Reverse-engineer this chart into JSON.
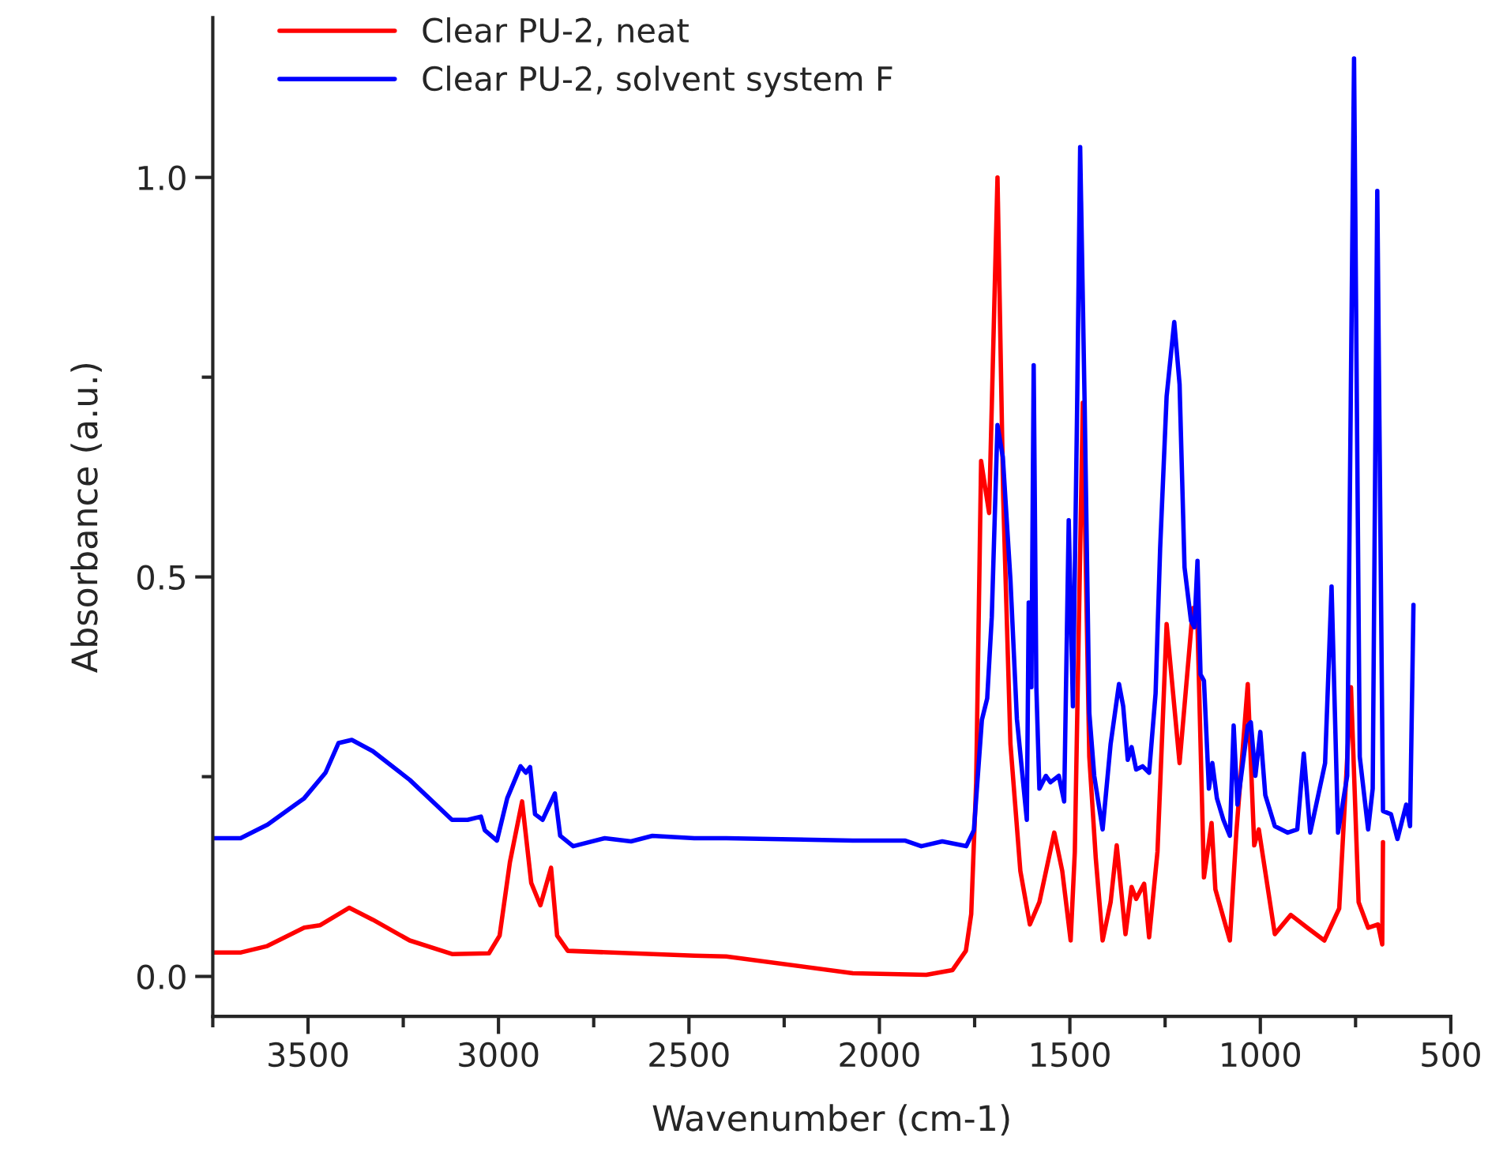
{
  "chart_data": {
    "type": "line",
    "xlabel": "Wavenumber (cm-1)",
    "ylabel": "Absorbance (a.u.)",
    "xlim": [
      3750,
      500
    ],
    "ylim": [
      -0.05,
      1.2
    ],
    "xticks": [
      {
        "value": 3750,
        "label": null
      },
      3500,
      {
        "value": 3250,
        "label": null
      },
      3000,
      {
        "value": 2750,
        "label": null
      },
      2500,
      {
        "value": 2250,
        "label": null
      },
      2000,
      {
        "value": 1750,
        "label": null
      },
      1500,
      {
        "value": 1250,
        "label": null
      },
      1000,
      {
        "value": 750,
        "label": null
      },
      500
    ],
    "yticks": [
      {
        "value": 0,
        "label": "0.0"
      },
      {
        "value": 0.25,
        "label": null
      },
      {
        "value": 0.5,
        "label": "0.5"
      },
      {
        "value": 0.75,
        "label": null
      },
      {
        "value": 1,
        "label": "1.0"
      }
    ],
    "legend": "top left",
    "series": [
      {
        "name": "Clear PU-2, neat",
        "color": "#ff0000",
        "x": [
          3750,
          3676,
          3607,
          3510,
          3469,
          3392,
          3330,
          3233,
          3122,
          3025,
          2997,
          2970,
          2938,
          2914,
          2890,
          2862,
          2846,
          2818,
          2486,
          2402,
          2070,
          1877,
          1808,
          1773,
          1759,
          1746,
          1733,
          1712,
          1690,
          1675,
          1656,
          1630,
          1605,
          1580,
          1541,
          1520,
          1498,
          1487,
          1466,
          1449,
          1432,
          1414,
          1393,
          1377,
          1354,
          1338,
          1326,
          1305,
          1292,
          1270,
          1246,
          1212,
          1177,
          1165,
          1148,
          1128,
          1118,
          1080,
          1063,
          1033,
          1016,
          1004,
          962,
          920,
          877,
          832,
          793,
          762,
          742,
          717,
          691,
          680,
          678
        ],
        "values": [
          0.03,
          0.03,
          0.038,
          0.061,
          0.064,
          0.086,
          0.071,
          0.045,
          0.028,
          0.029,
          0.051,
          0.143,
          0.219,
          0.117,
          0.089,
          0.136,
          0.051,
          0.032,
          0.026,
          0.025,
          0.004,
          0.002,
          0.008,
          0.032,
          0.078,
          0.242,
          0.645,
          0.58,
          1.0,
          0.6,
          0.291,
          0.132,
          0.065,
          0.093,
          0.18,
          0.132,
          0.045,
          0.156,
          0.718,
          0.275,
          0.148,
          0.045,
          0.093,
          0.164,
          0.053,
          0.112,
          0.097,
          0.116,
          0.049,
          0.156,
          0.441,
          0.267,
          0.461,
          0.441,
          0.124,
          0.192,
          0.109,
          0.045,
          0.18,
          0.366,
          0.164,
          0.184,
          0.053,
          0.077,
          0.061,
          0.045,
          0.085,
          0.362,
          0.093,
          0.061,
          0.065,
          0.04,
          0.168
        ]
      },
      {
        "name": "Clear PU-2, solvent system F",
        "color": "#0000ff",
        "x": [
          3750,
          3677,
          3606,
          3510,
          3454,
          3420,
          3385,
          3330,
          3233,
          3122,
          3081,
          3046,
          3036,
          3004,
          2977,
          2942,
          2928,
          2917,
          2904,
          2884,
          2852,
          2838,
          2804,
          2721,
          2652,
          2596,
          2486,
          2402,
          2070,
          1932,
          1890,
          1835,
          1772,
          1752,
          1731,
          1717,
          1705,
          1690,
          1676,
          1656,
          1639,
          1613,
          1608,
          1601,
          1595,
          1588,
          1580,
          1563,
          1551,
          1529,
          1515,
          1503,
          1492,
          1481,
          1473,
          1461,
          1449,
          1436,
          1414,
          1393,
          1371,
          1360,
          1348,
          1338,
          1326,
          1309,
          1292,
          1275,
          1263,
          1246,
          1226,
          1212,
          1199,
          1182,
          1173,
          1165,
          1157,
          1148,
          1135,
          1126,
          1114,
          1097,
          1080,
          1070,
          1060,
          1033,
          1025,
          1013,
          1000,
          987,
          962,
          928,
          903,
          886,
          869,
          830,
          813,
          796,
          772,
          754,
          739,
          717,
          705,
          693,
          678,
          657,
          640,
          617,
          607,
          598
        ],
        "values": [
          0.173,
          0.173,
          0.19,
          0.223,
          0.255,
          0.292,
          0.296,
          0.282,
          0.246,
          0.196,
          0.196,
          0.2,
          0.183,
          0.17,
          0.223,
          0.263,
          0.255,
          0.262,
          0.203,
          0.196,
          0.229,
          0.176,
          0.163,
          0.173,
          0.169,
          0.176,
          0.173,
          0.173,
          0.17,
          0.17,
          0.163,
          0.169,
          0.163,
          0.183,
          0.321,
          0.348,
          0.45,
          0.69,
          0.65,
          0.496,
          0.322,
          0.196,
          0.468,
          0.362,
          0.765,
          0.362,
          0.235,
          0.251,
          0.243,
          0.251,
          0.219,
          0.571,
          0.338,
          0.71,
          1.038,
          0.71,
          0.33,
          0.251,
          0.184,
          0.291,
          0.366,
          0.338,
          0.271,
          0.287,
          0.259,
          0.263,
          0.255,
          0.354,
          0.536,
          0.726,
          0.819,
          0.741,
          0.512,
          0.445,
          0.437,
          0.52,
          0.378,
          0.37,
          0.235,
          0.267,
          0.223,
          0.196,
          0.176,
          0.314,
          0.215,
          0.314,
          0.318,
          0.251,
          0.306,
          0.227,
          0.188,
          0.18,
          0.184,
          0.279,
          0.18,
          0.267,
          0.488,
          0.18,
          0.251,
          1.149,
          0.275,
          0.184,
          0.235,
          0.983,
          0.207,
          0.203,
          0.172,
          0.215,
          0.188,
          0.465
        ]
      }
    ]
  }
}
